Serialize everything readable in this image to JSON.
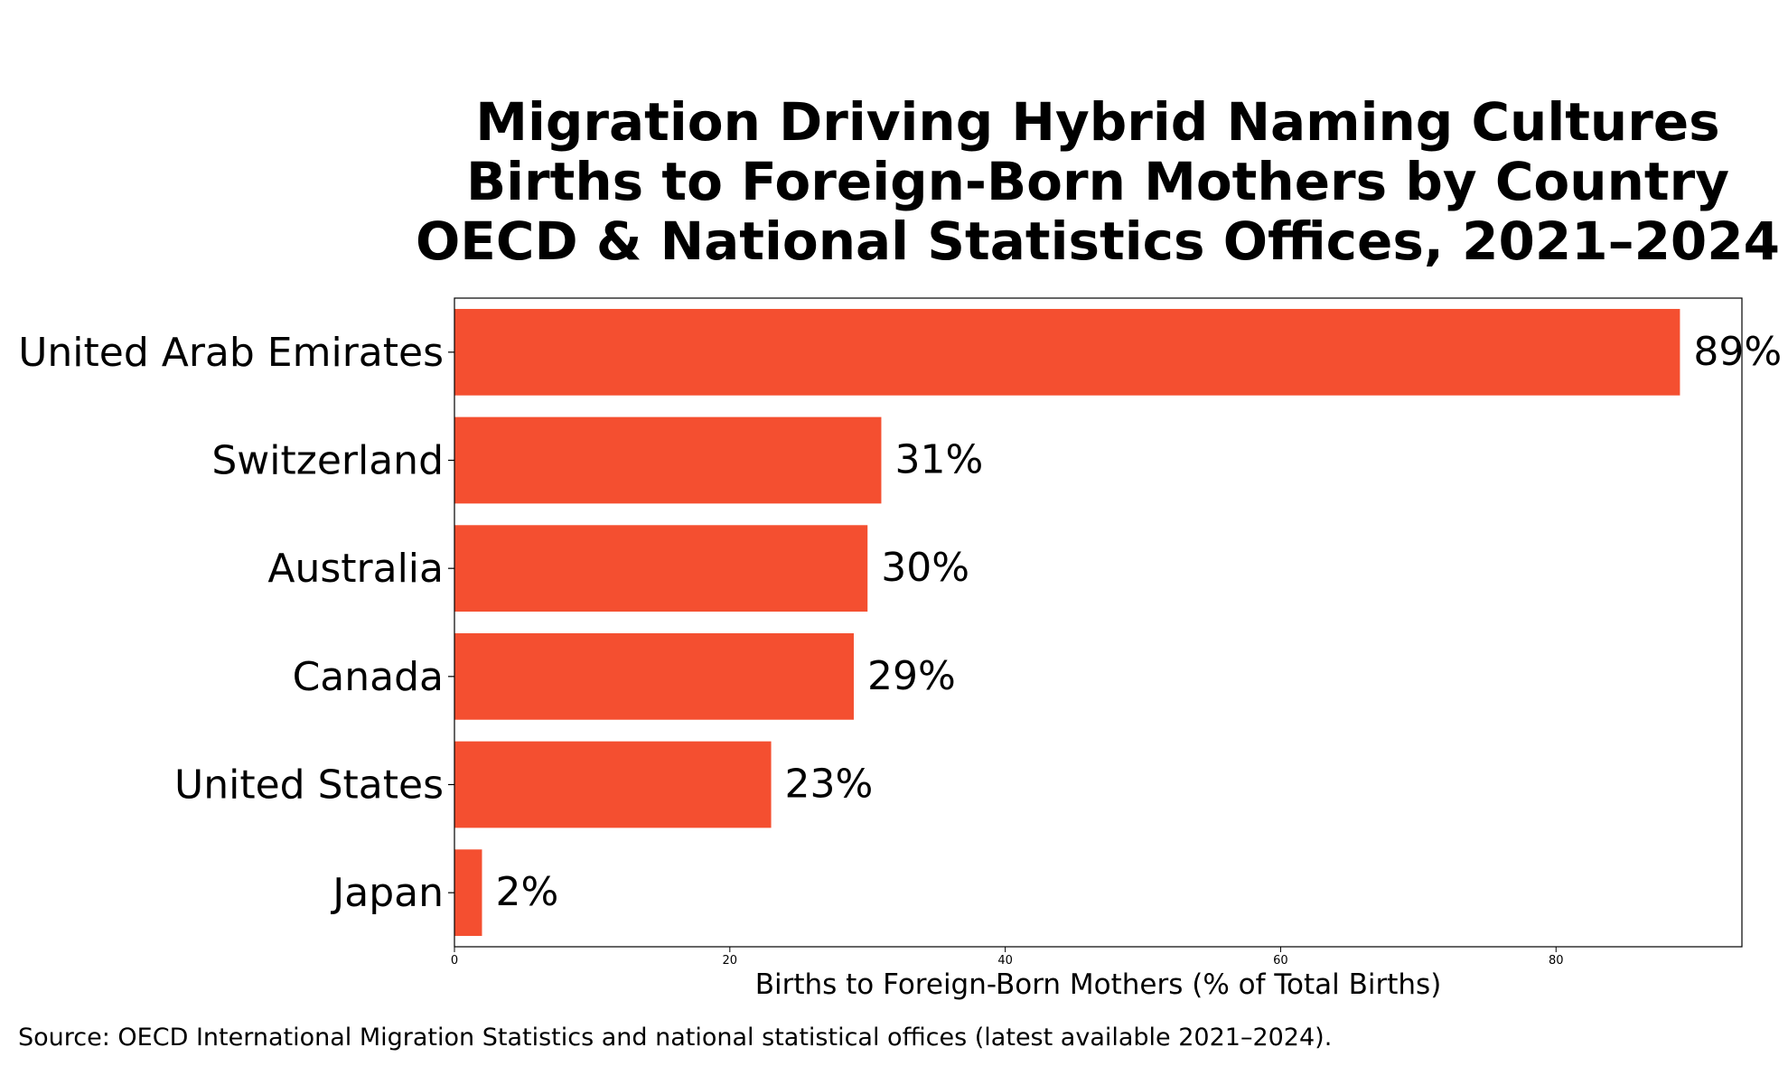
{
  "chart_data": {
    "type": "bar",
    "orientation": "horizontal",
    "title_lines": [
      "Migration Driving Hybrid Naming Cultures",
      "Births to Foreign-Born Mothers by Country",
      "OECD & National Statistics Offices, 2021–2024"
    ],
    "categories": [
      "United Arab Emirates",
      "Switzerland",
      "Australia",
      "Canada",
      "United States",
      "Japan"
    ],
    "values": [
      89,
      31,
      30,
      29,
      23,
      2
    ],
    "value_labels": [
      "89%",
      "31%",
      "30%",
      "29%",
      "23%",
      "2%"
    ],
    "xlabel": "Births to Foreign-Born Mothers (% of Total Births)",
    "xlim": [
      0,
      93.5
    ],
    "xticks": [
      0,
      20,
      40,
      60,
      80
    ],
    "bar_color": "#f44f30",
    "grid": false,
    "source": "Source: OECD International Migration Statistics and national statistical offices (latest available 2021–2024)."
  }
}
